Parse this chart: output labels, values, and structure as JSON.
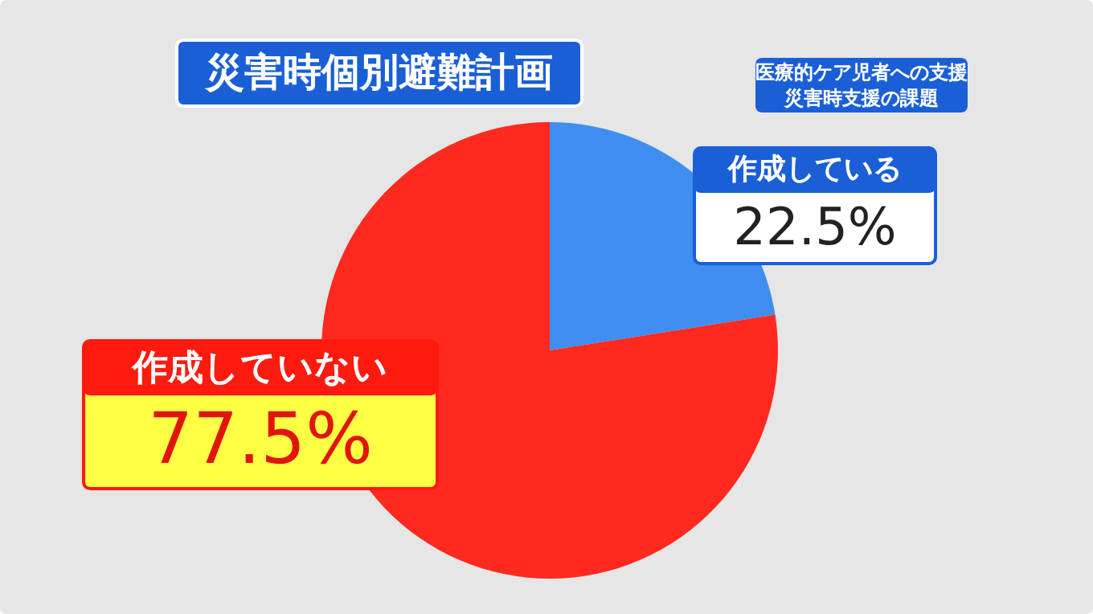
{
  "chart_data": {
    "type": "pie",
    "title": "災害時個別避難計画",
    "categories": [
      "作成している",
      "作成していない"
    ],
    "values": [
      22.5,
      77.5
    ],
    "colors": [
      "#3f8ef0",
      "#ff2a1f"
    ],
    "value_labels": [
      "22.5%",
      "77.5%"
    ],
    "annotations": [
      "医療的ケア児者への支援",
      "災害時支援の課題"
    ],
    "legend": false
  }
}
